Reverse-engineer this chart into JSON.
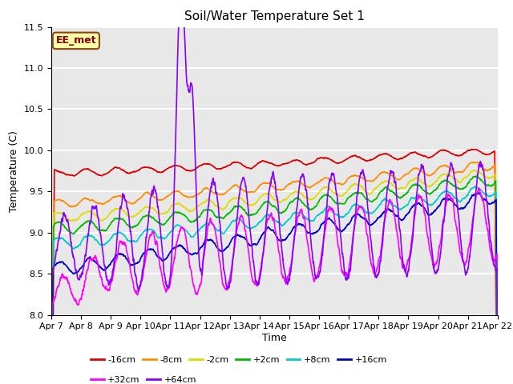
{
  "title": "Soil/Water Temperature Set 1",
  "xlabel": "Time",
  "ylabel": "Temperature (C)",
  "ylim": [
    8.0,
    11.5
  ],
  "n_days": 15,
  "annotation_text": "EE_met",
  "annotation_box_facecolor": "#FFFFAA",
  "annotation_box_edgecolor": "#8B4513",
  "annotation_text_color": "#8B0000",
  "bg_color": "#E8E8E8",
  "grid_color": "white",
  "tick_labels": [
    "Apr 7",
    "Apr 8",
    "Apr 9",
    "Apr 10",
    "Apr 11",
    "Apr 12",
    "Apr 13",
    "Apr 14",
    "Apr 15",
    "Apr 16",
    "Apr 17",
    "Apr 18",
    "Apr 19",
    "Apr 20",
    "Apr 21",
    "Apr 22"
  ],
  "series_order": [
    "-16cm",
    "-8cm",
    "-2cm",
    "+2cm",
    "+8cm",
    "+16cm",
    "+32cm",
    "+64cm"
  ],
  "series": {
    "-16cm": {
      "color": "#DD0000",
      "lw": 1.2
    },
    "-8cm": {
      "color": "#FF8C00",
      "lw": 1.2
    },
    "-2cm": {
      "color": "#DDDD00",
      "lw": 1.2
    },
    "+2cm": {
      "color": "#00BB00",
      "lw": 1.2
    },
    "+8cm": {
      "color": "#00CCCC",
      "lw": 1.2
    },
    "+16cm": {
      "color": "#0000CC",
      "lw": 1.2
    },
    "+32cm": {
      "color": "#FF00FF",
      "lw": 1.2
    },
    "+64cm": {
      "color": "#8800FF",
      "lw": 1.2
    }
  },
  "legend_row1": [
    "-16cm",
    "-8cm",
    "-2cm",
    "+2cm",
    "+8cm",
    "+16cm"
  ],
  "legend_row2": [
    "+32cm",
    "+64cm"
  ]
}
